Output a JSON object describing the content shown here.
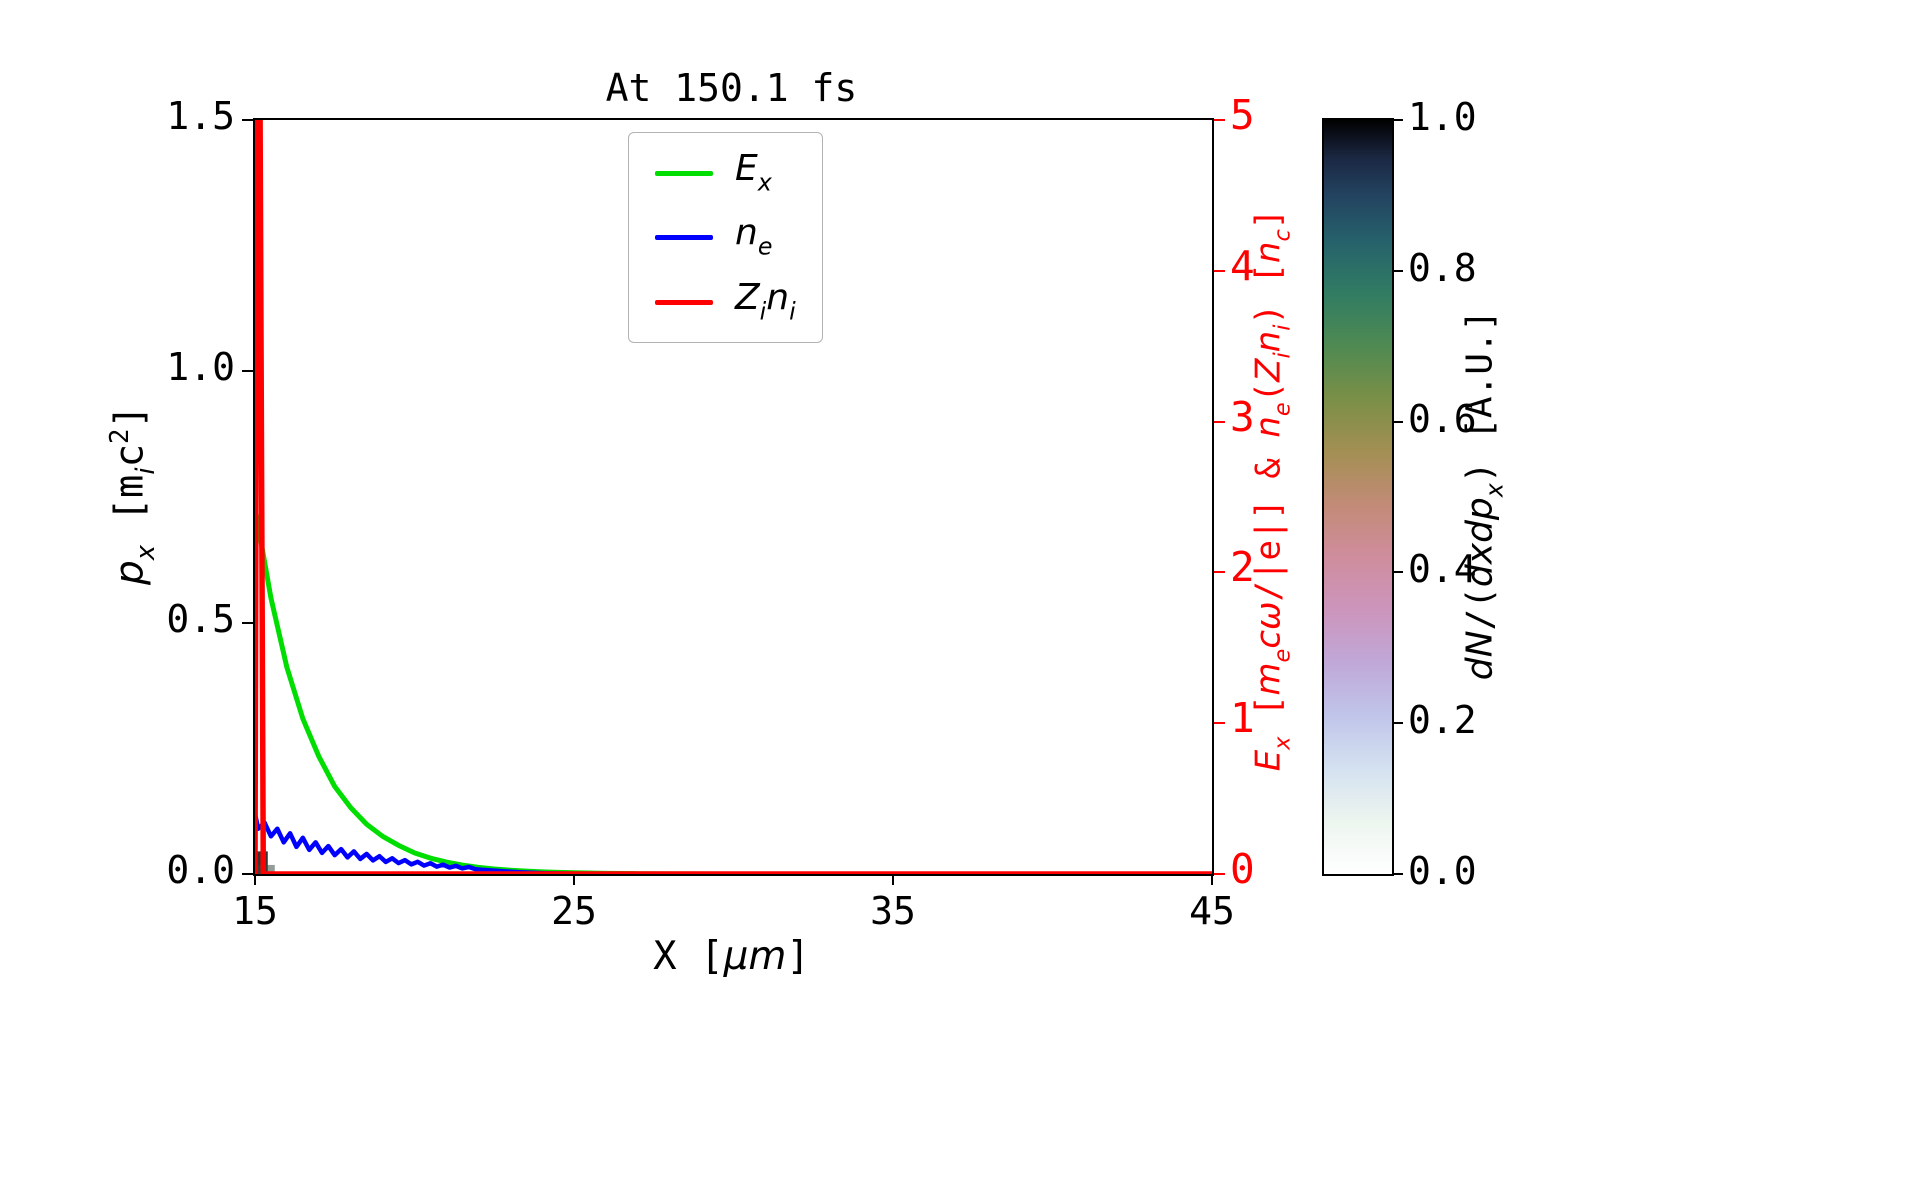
{
  "chart_data": {
    "type": "line",
    "title": "At 150.1 fs",
    "xlabel_parts": [
      {
        "t": "X [",
        "s": ""
      },
      {
        "t": "μm",
        "s": "i"
      },
      {
        "t": "]",
        "s": ""
      }
    ],
    "ylabel_left_parts": [
      {
        "t": "p",
        "s": "i"
      },
      {
        "t": "x",
        "s": "subi"
      },
      {
        "t": " [m",
        "s": ""
      },
      {
        "t": "i",
        "s": "subi"
      },
      {
        "t": "c",
        "s": ""
      },
      {
        "t": "2",
        "s": "sup"
      },
      {
        "t": "]",
        "s": ""
      }
    ],
    "ylabel_right_parts": [
      {
        "t": "E",
        "s": "i"
      },
      {
        "t": "x",
        "s": "subi"
      },
      {
        "t": " [",
        "s": ""
      },
      {
        "t": "m",
        "s": "i"
      },
      {
        "t": "e",
        "s": "subi"
      },
      {
        "t": "cω",
        "s": "i"
      },
      {
        "t": "/|e|] & ",
        "s": ""
      },
      {
        "t": "n",
        "s": "i"
      },
      {
        "t": "e",
        "s": "subi"
      },
      {
        "t": "(",
        "s": ""
      },
      {
        "t": "Z",
        "s": "i"
      },
      {
        "t": "i",
        "s": "subi"
      },
      {
        "t": "n",
        "s": "i"
      },
      {
        "t": "i",
        "s": "subi"
      },
      {
        "t": ") [",
        "s": ""
      },
      {
        "t": "n",
        "s": "i"
      },
      {
        "t": "c",
        "s": "subi"
      },
      {
        "t": "]",
        "s": ""
      }
    ],
    "colorbar_label_parts": [
      {
        "t": "dN",
        "s": "i"
      },
      {
        "t": "/(",
        "s": ""
      },
      {
        "t": "dxdp",
        "s": "i"
      },
      {
        "t": "x",
        "s": "subi"
      },
      {
        "t": ") [A.U.]",
        "s": ""
      }
    ],
    "xlim": [
      15,
      45
    ],
    "x_ticks": [
      "15",
      "25",
      "35",
      "45"
    ],
    "x_tick_values": [
      15,
      25,
      35,
      45
    ],
    "ylim_left": [
      0.0,
      1.5
    ],
    "y_ticks_left": [
      "0.0",
      "0.5",
      "1.0",
      "1.5"
    ],
    "y_tick_values_left": [
      0.0,
      0.5,
      1.0,
      1.5
    ],
    "ylim_right": [
      0,
      5
    ],
    "y_ticks_right": [
      "0",
      "1",
      "2",
      "3",
      "4",
      "5"
    ],
    "y_tick_values_right": [
      0,
      1,
      2,
      3,
      4,
      5
    ],
    "axis_colors": {
      "left": "#000000",
      "right": "#ff0000"
    },
    "grid": false,
    "legend_position": "upper center",
    "legend": [
      {
        "color": "#00dd00",
        "label": [
          {
            "t": "E",
            "s": "i"
          },
          {
            "t": "x",
            "s": "subi"
          }
        ]
      },
      {
        "color": "#0000ff",
        "label": [
          {
            "t": "n",
            "s": "i"
          },
          {
            "t": "e",
            "s": "subi"
          }
        ]
      },
      {
        "color": "#ff0000",
        "label": [
          {
            "t": "Z",
            "s": "i"
          },
          {
            "t": "i",
            "s": "subi"
          },
          {
            "t": "n",
            "s": "i"
          },
          {
            "t": "i",
            "s": "subi"
          }
        ]
      }
    ],
    "series": [
      {
        "name": "Ex",
        "color": "#00dd00",
        "axis": "right",
        "width": 5,
        "x": [
          15,
          15.5,
          16,
          16.5,
          17,
          17.5,
          18,
          18.5,
          19,
          19.5,
          20,
          20.5,
          21,
          21.5,
          22,
          22.5,
          23,
          23.5,
          24,
          24.5,
          25,
          26,
          27,
          28,
          30,
          45
        ],
        "y": [
          2.43,
          1.83,
          1.37,
          1.03,
          0.78,
          0.58,
          0.44,
          0.33,
          0.25,
          0.19,
          0.14,
          0.105,
          0.079,
          0.059,
          0.044,
          0.033,
          0.025,
          0.019,
          0.014,
          0.011,
          0.008,
          0.004,
          0.002,
          0.001,
          0,
          0
        ]
      },
      {
        "name": "ne",
        "color": "#0000ff",
        "axis": "right",
        "width": 4.5,
        "x": [
          15.0,
          15.1,
          15.3,
          15.5,
          15.7,
          15.9,
          16.1,
          16.3,
          16.5,
          16.7,
          16.9,
          17.1,
          17.3,
          17.5,
          17.7,
          17.9,
          18.1,
          18.3,
          18.5,
          18.7,
          18.9,
          19.1,
          19.3,
          19.5,
          19.7,
          19.9,
          20.1,
          20.3,
          20.5,
          20.7,
          20.9,
          21.1,
          21.3,
          21.5,
          21.7,
          21.9,
          22.1,
          22.5,
          22.9,
          23.3,
          23.7,
          24.1,
          25.0,
          30.0,
          45.0
        ],
        "y": [
          0.4,
          0.3,
          0.34,
          0.25,
          0.3,
          0.21,
          0.27,
          0.18,
          0.24,
          0.16,
          0.21,
          0.14,
          0.185,
          0.125,
          0.165,
          0.11,
          0.15,
          0.1,
          0.133,
          0.09,
          0.118,
          0.08,
          0.104,
          0.072,
          0.092,
          0.064,
          0.081,
          0.056,
          0.071,
          0.049,
          0.062,
          0.043,
          0.054,
          0.037,
          0.047,
          0.032,
          0.028,
          0.022,
          0.017,
          0.012,
          0.008,
          0.005,
          0.002,
          0.0,
          0.0
        ]
      },
      {
        "name": "Zini",
        "color": "#ff0000",
        "axis": "right",
        "width": 5.5,
        "x": [
          15.0,
          15.06,
          15.16,
          15.26,
          16.0,
          45.0
        ],
        "y": [
          0,
          5,
          5,
          0,
          0,
          0
        ]
      }
    ],
    "histogram_patches": [
      {
        "x0": 15.03,
        "x1": 15.4,
        "p0": 0.0,
        "p1": 0.045,
        "color": "#111111",
        "opacity": 0.85
      },
      {
        "x0": 15.03,
        "x1": 15.62,
        "p0": 0.0,
        "p1": 0.018,
        "color": "#3c4a44",
        "opacity": 0.55
      }
    ],
    "colorbar": {
      "lim": [
        0.0,
        1.0
      ],
      "ticks": [
        "0.0",
        "0.2",
        "0.4",
        "0.6",
        "0.8",
        "1.0"
      ],
      "tick_values": [
        0.0,
        0.2,
        0.4,
        0.6,
        0.8,
        1.0
      ],
      "colormap_stops": [
        {
          "pos": 0.0,
          "color": "#ffffff"
        },
        {
          "pos": 0.07,
          "color": "#edf5ef"
        },
        {
          "pos": 0.14,
          "color": "#d4e1f0"
        },
        {
          "pos": 0.21,
          "color": "#c0c5ea"
        },
        {
          "pos": 0.28,
          "color": "#c0a8d8"
        },
        {
          "pos": 0.35,
          "color": "#cc95bc"
        },
        {
          "pos": 0.42,
          "color": "#cf8d9d"
        },
        {
          "pos": 0.49,
          "color": "#c28b77"
        },
        {
          "pos": 0.56,
          "color": "#a38f53"
        },
        {
          "pos": 0.63,
          "color": "#7a8f47"
        },
        {
          "pos": 0.7,
          "color": "#4f8a52"
        },
        {
          "pos": 0.77,
          "color": "#317c63"
        },
        {
          "pos": 0.84,
          "color": "#26616b"
        },
        {
          "pos": 0.9,
          "color": "#234360"
        },
        {
          "pos": 0.95,
          "color": "#1b2742"
        },
        {
          "pos": 1.0,
          "color": "#000000"
        }
      ]
    }
  }
}
